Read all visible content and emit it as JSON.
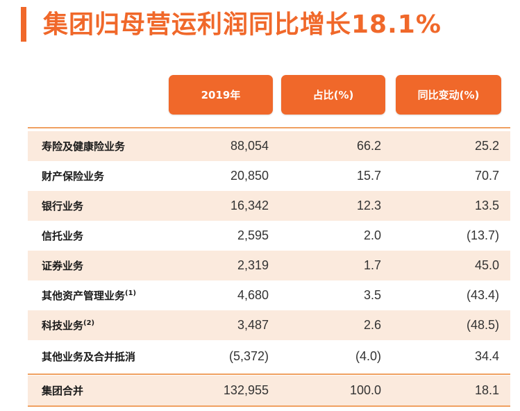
{
  "title": "集团归母营运利润同比增长18.1%",
  "headers": [
    "2019年",
    "占比(%)",
    "同比变动(%)"
  ],
  "rows": [
    {
      "label": "寿险及健康险业务",
      "sup": "",
      "v2019": "88,054",
      "share": "66.2",
      "yoy": "25.2"
    },
    {
      "label": "财产保险业务",
      "sup": "",
      "v2019": "20,850",
      "share": "15.7",
      "yoy": "70.7"
    },
    {
      "label": "银行业务",
      "sup": "",
      "v2019": "16,342",
      "share": "12.3",
      "yoy": "13.5"
    },
    {
      "label": "信托业务",
      "sup": "",
      "v2019": "2,595",
      "share": "2.0",
      "yoy": "(13.7)"
    },
    {
      "label": "证券业务",
      "sup": "",
      "v2019": "2,319",
      "share": "1.7",
      "yoy": "45.0"
    },
    {
      "label": "其他资产管理业务",
      "sup": "(1)",
      "v2019": "4,680",
      "share": "3.5",
      "yoy": "(43.4)"
    },
    {
      "label": "科技业务",
      "sup": "(2)",
      "v2019": "3,487",
      "share": "2.6",
      "yoy": "(48.5)"
    },
    {
      "label": "其他业务及合并抵消",
      "sup": "",
      "v2019": "(5,372)",
      "share": "(4.0)",
      "yoy": "34.4"
    }
  ],
  "total": {
    "label": "集团合并",
    "v2019": "132,955",
    "share": "100.0",
    "yoy": "18.1"
  },
  "colors": {
    "accent": "#f0682a",
    "row_shade": "#fbeadd",
    "rule": "#f0a060"
  }
}
